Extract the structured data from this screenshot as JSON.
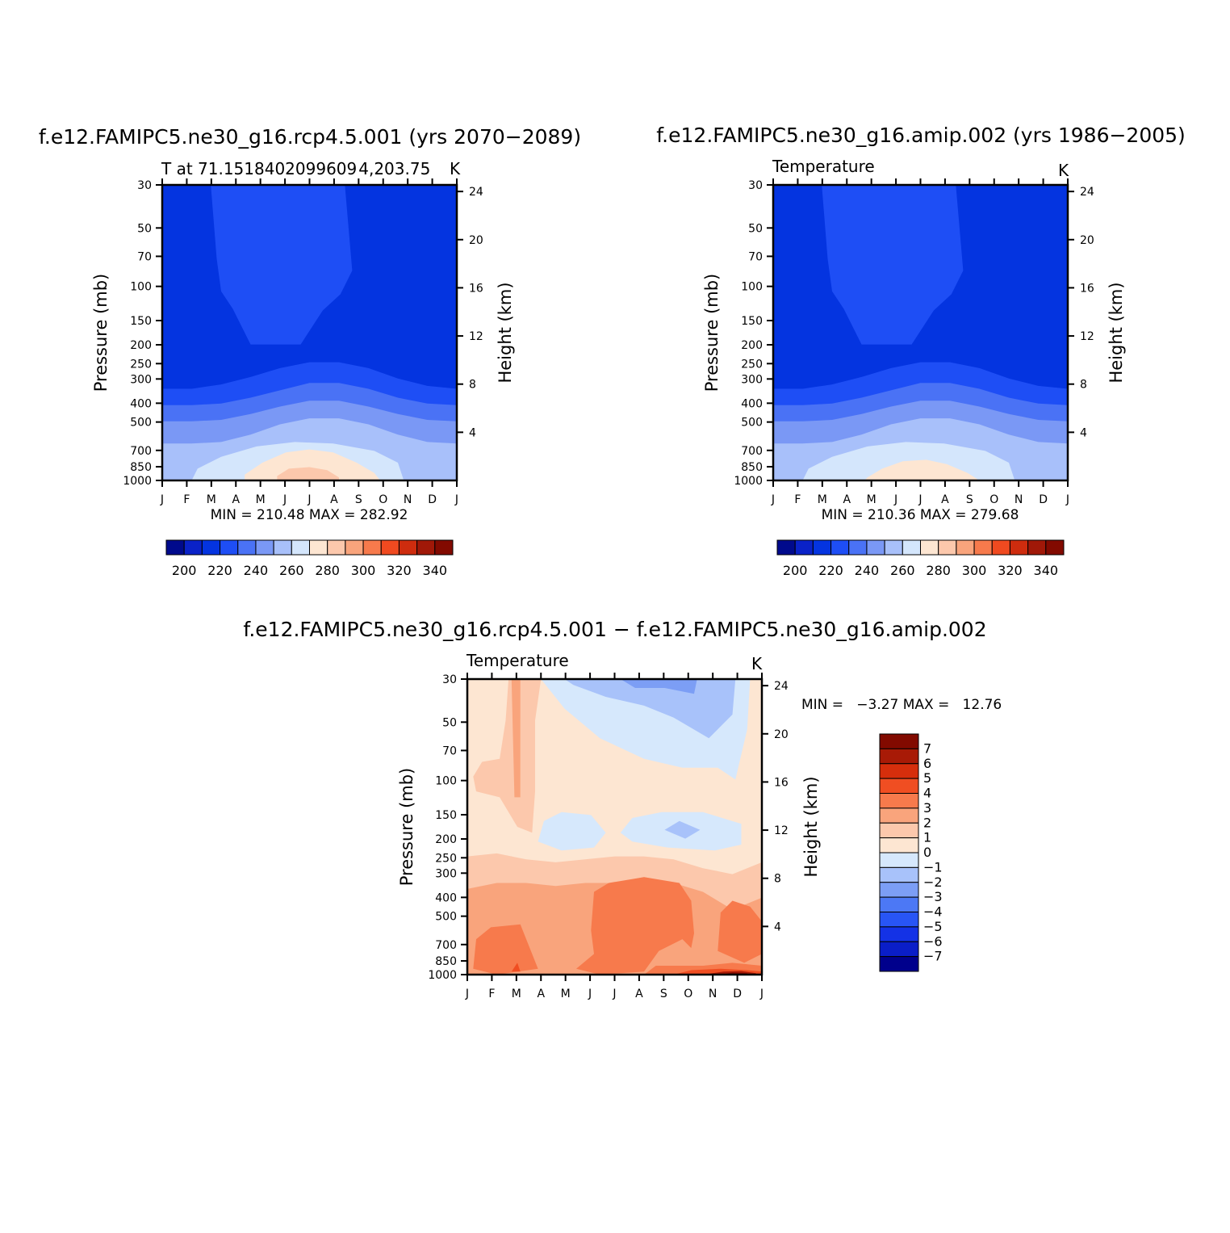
{
  "figure": {
    "panels": [
      {
        "id": "left",
        "case_title": "f.e12.FAMIPC5.ne30_g16.rcp4.5.001 (yrs 2070−2089)",
        "var_label": "T at 71.1518402099609 4,203.75",
        "units": "K",
        "minmax": "MIN = 210.48 MAX = 282.92"
      },
      {
        "id": "right",
        "case_title": "f.e12.FAMIPC5.ne30_g16.amip.002 (yrs 1986−2005)",
        "var_label": "Temperature",
        "units": "K",
        "minmax": "MIN = 210.36 MAX = 279.68"
      },
      {
        "id": "bottom",
        "case_title": "f.e12.FAMIPC5.ne30_g16.rcp4.5.001 − f.e12.FAMIPC5.ne30_g16.amip.002",
        "var_label": "Temperature",
        "units": "K",
        "minmax": "MIN =   −3.27 MAX =   12.76"
      }
    ],
    "axis_labels": {
      "left": "Pressure (mb)",
      "right": "Height (km)"
    },
    "colors": {
      "abs_levels": [
        "#000a8c",
        "#0a22c8",
        "#0434e0",
        "#1e4ef5",
        "#4a72f5",
        "#7a98f5",
        "#a8c0fa",
        "#d4e6fc",
        "#fde6d2",
        "#fcc8ac",
        "#f9a47c",
        "#f77a4c",
        "#f04a20",
        "#ce2c0e",
        "#a01808",
        "#820a00"
      ],
      "diff_levels": [
        "#00008c",
        "#0a1ec8",
        "#1432e6",
        "#2855f5",
        "#4c78f5",
        "#7c9ef5",
        "#a8c2fa",
        "#d6e8fc",
        "#fde6d2",
        "#fcc8ac",
        "#f9a47c",
        "#f77a4c",
        "#f04e22",
        "#d62e0c",
        "#a81a06",
        "#820a00"
      ]
    }
  },
  "chart_data": [
    {
      "type": "contour",
      "title": "f.e12.FAMIPC5.ne30_g16.rcp4.5.001 (yrs 2070−2089)",
      "variable": "T at 71.1518402099609 4,203.75",
      "units": "K",
      "x_ticks": [
        "J",
        "F",
        "M",
        "A",
        "M",
        "J",
        "J",
        "A",
        "S",
        "O",
        "N",
        "D",
        "J"
      ],
      "y_ticks": [
        "30",
        "50",
        "70",
        "100",
        "150",
        "200",
        "250",
        "300",
        "400",
        "500",
        "700",
        "850",
        "1000"
      ],
      "y_values": [
        30,
        50,
        70,
        100,
        150,
        200,
        250,
        300,
        400,
        500,
        700,
        850,
        1000
      ],
      "y2_ticks": [
        "24",
        "20",
        "16",
        "12",
        "8",
        "4"
      ],
      "y2_values": [
        24,
        20,
        16,
        12,
        8,
        4
      ],
      "ylim": [
        30,
        1000
      ],
      "xlabel": "",
      "ylabel": "Pressure (mb)",
      "y2label": "Height (km)",
      "min": 210.48,
      "max": 282.92,
      "colorbar": {
        "orientation": "horizontal",
        "tick_labels": [
          "200",
          "220",
          "240",
          "260",
          "280",
          "300",
          "320",
          "340"
        ],
        "levels": [
          195,
          200,
          205,
          210,
          215,
          220,
          225,
          230,
          235,
          240,
          245,
          250,
          255,
          260,
          265,
          270,
          275,
          280,
          285,
          290,
          295,
          300,
          305,
          310,
          315,
          320,
          325,
          330,
          335,
          340,
          345
        ]
      }
    },
    {
      "type": "contour",
      "title": "f.e12.FAMIPC5.ne30_g16.amip.002 (yrs 1986−2005)",
      "variable": "Temperature",
      "units": "K",
      "x_ticks": [
        "J",
        "F",
        "M",
        "A",
        "M",
        "J",
        "J",
        "A",
        "S",
        "O",
        "N",
        "D",
        "J"
      ],
      "y_ticks": [
        "30",
        "50",
        "70",
        "100",
        "150",
        "200",
        "250",
        "300",
        "400",
        "500",
        "700",
        "850",
        "1000"
      ],
      "y_values": [
        30,
        50,
        70,
        100,
        150,
        200,
        250,
        300,
        400,
        500,
        700,
        850,
        1000
      ],
      "y2_ticks": [
        "24",
        "20",
        "16",
        "12",
        "8",
        "4"
      ],
      "y2_values": [
        24,
        20,
        16,
        12,
        8,
        4
      ],
      "ylim": [
        30,
        1000
      ],
      "xlabel": "",
      "ylabel": "Pressure (mb)",
      "y2label": "Height (km)",
      "min": 210.36,
      "max": 279.68,
      "colorbar": {
        "orientation": "horizontal",
        "tick_labels": [
          "200",
          "220",
          "240",
          "260",
          "280",
          "300",
          "320",
          "340"
        ]
      }
    },
    {
      "type": "contour",
      "title": "f.e12.FAMIPC5.ne30_g16.rcp4.5.001 − f.e12.FAMIPC5.ne30_g16.amip.002",
      "variable": "Temperature",
      "units": "K",
      "x_ticks": [
        "J",
        "F",
        "M",
        "A",
        "M",
        "J",
        "J",
        "A",
        "S",
        "O",
        "N",
        "D",
        "J"
      ],
      "y_ticks": [
        "30",
        "50",
        "70",
        "100",
        "150",
        "200",
        "250",
        "300",
        "400",
        "500",
        "700",
        "850",
        "1000"
      ],
      "y_values": [
        30,
        50,
        70,
        100,
        150,
        200,
        250,
        300,
        400,
        500,
        700,
        850,
        1000
      ],
      "y2_ticks": [
        "24",
        "20",
        "16",
        "12",
        "8",
        "4"
      ],
      "y2_values": [
        24,
        20,
        16,
        12,
        8,
        4
      ],
      "ylim": [
        30,
        1000
      ],
      "xlabel": "",
      "ylabel": "Pressure (mb)",
      "y2label": "Height (km)",
      "min": -3.27,
      "max": 12.76,
      "colorbar": {
        "orientation": "vertical",
        "tick_labels": [
          "7",
          "6",
          "5",
          "4",
          "3",
          "2",
          "1",
          "0",
          "−1",
          "−2",
          "−3",
          "−4",
          "−5",
          "−6",
          "−7"
        ]
      }
    }
  ]
}
